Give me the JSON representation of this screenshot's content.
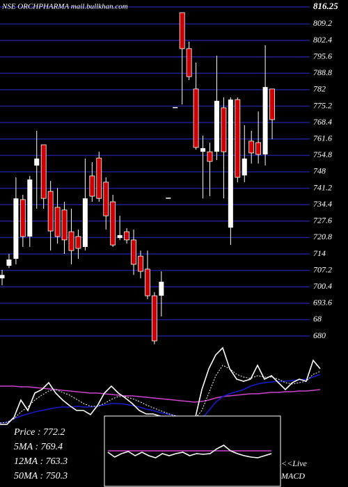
{
  "chart_data": [
    {
      "type": "candlestick",
      "title": "NSE ORCHPHARMA mail.bullkhan.com",
      "up_color": "#ffffff",
      "down_color": "#cc0000",
      "grid": true,
      "grid_color": "#1f1f8f",
      "ylim": [
        676.56,
        819.13
      ],
      "yticks": [
        816.25,
        809.2,
        802.4,
        795.6,
        788.8,
        782,
        775.2,
        768.4,
        761.6,
        754.8,
        748,
        741.2,
        734.4,
        727.6,
        720.8,
        714,
        707.2,
        700.4,
        693.6,
        {
          "value": 686.8,
          "label": "68"
        },
        680
      ],
      "open": [
        703.9,
        709.1,
        712.0,
        736.5,
        721.2,
        750.6,
        759.2,
        739.9,
        733.3,
        732.2,
        723.2,
        721.2,
        716.9,
        746.3,
        753.7,
        743.7,
        735.6,
        720.6,
        723.2,
        719.8,
        713.1,
        707.7,
        696.7,
        696.7,
        737.3,
        774.8,
        813.9,
        799.0,
        782.3,
        756.3,
        756.3,
        756.3,
        774.5,
        724.9,
        777.9,
        746.5,
        760.7,
        760.1,
        755.2,
        782.3
      ],
      "high": [
        707.4,
        714.0,
        745.7,
        738.5,
        746.3,
        765.0,
        759.2,
        744.2,
        741.3,
        735.6,
        732.7,
        724.1,
        753.5,
        752.0,
        756.3,
        745.7,
        738.5,
        729.8,
        724.7,
        724.1,
        715.4,
        715.4,
        698.2,
        706.8,
        737.3,
        774.8,
        813.9,
        801.9,
        793.2,
        763.0,
        760.1,
        796.1,
        778.8,
        778.8,
        778.8,
        767.3,
        765.0,
        773.0,
        800.4,
        782.3
      ],
      "low": [
        701.0,
        708.2,
        709.7,
        716.9,
        716.9,
        732.7,
        732.7,
        715.4,
        718.3,
        714.0,
        709.7,
        712.0,
        715.4,
        735.6,
        735.6,
        724.1,
        716.9,
        719.8,
        718.3,
        705.3,
        703.9,
        695.3,
        676.6,
        688.1,
        737.3,
        774.8,
        775.9,
        786.0,
        757.2,
        737.0,
        737.9,
        752.9,
        737.0,
        717.7,
        743.7,
        743.7,
        751.4,
        751.4,
        750.6,
        761.5
      ],
      "close": [
        705.3,
        711.7,
        737.0,
        721.2,
        744.8,
        753.5,
        737.0,
        723.5,
        721.2,
        719.8,
        715.4,
        716.3,
        737.0,
        737.9,
        737.0,
        729.8,
        717.7,
        721.8,
        719.8,
        709.7,
        706.8,
        696.7,
        678.0,
        702.5,
        737.3,
        774.8,
        799.0,
        787.4,
        758.1,
        757.8,
        752.3,
        777.4,
        756.3,
        777.9,
        745.7,
        753.5,
        755.8,
        755.2,
        783.1,
        769.6
      ]
    },
    {
      "type": "line",
      "ylim": [
        0,
        115
      ],
      "annotations": [
        "Price : 772.2",
        "5MA : 769.4",
        "12MA : 763.3",
        "50MA : 750.3"
      ],
      "series": [
        {
          "color": "#cc44cc",
          "values": [
            55,
            55,
            55,
            54,
            54,
            53,
            52,
            51,
            50,
            49,
            48,
            47,
            46,
            45,
            45,
            44,
            43,
            42,
            41,
            41,
            40,
            39,
            38,
            37,
            36,
            35,
            34,
            33,
            32,
            33,
            35,
            38,
            40,
            41,
            42,
            43,
            44,
            44,
            45,
            46,
            46,
            47,
            47,
            48,
            48,
            49,
            50
          ]
        },
        {
          "color": "#1a1acc",
          "values": [
            2,
            3,
            8,
            12,
            15,
            18,
            20,
            22,
            24,
            25,
            25,
            26,
            25,
            25,
            26,
            28,
            30,
            30,
            29,
            27,
            25,
            22,
            20,
            17,
            15,
            13,
            10,
            8,
            6,
            8,
            20,
            32,
            40,
            44,
            47,
            50,
            55,
            58,
            60,
            61,
            62,
            62,
            63,
            64,
            65,
            68,
            72
          ]
        },
        {
          "color": "#ffffff",
          "dashed": true,
          "values": [
            2,
            3,
            8,
            18,
            25,
            35,
            42,
            48,
            50,
            46,
            42,
            36,
            30,
            26,
            26,
            30,
            36,
            40,
            40,
            37,
            33,
            28,
            24,
            20,
            16,
            13,
            10,
            9,
            8,
            20,
            45,
            70,
            85,
            80,
            72,
            68,
            66,
            70,
            68,
            68,
            65,
            60,
            58,
            60,
            62,
            72,
            76
          ]
        },
        {
          "color": "#ffffff",
          "values": [
            0,
            0,
            10,
            35,
            20,
            45,
            50,
            60,
            45,
            35,
            27,
            20,
            20,
            14,
            27,
            45,
            55,
            45,
            38,
            30,
            20,
            15,
            15,
            12,
            10,
            8,
            7,
            10,
            7,
            50,
            80,
            100,
            110,
            80,
            65,
            62,
            65,
            85,
            65,
            70,
            60,
            50,
            60,
            65,
            62,
            92,
            80
          ]
        }
      ]
    },
    {
      "type": "line",
      "title": "MACD",
      "annotations": [
        "<<Live"
      ],
      "ylim": [
        -50,
        52
      ],
      "series": [
        {
          "color": "#cc44cc",
          "values": [
            2,
            2,
            2,
            2,
            2,
            2,
            2,
            2,
            2,
            2,
            2,
            2,
            2,
            2,
            2,
            2,
            2,
            2,
            2,
            2,
            2,
            2,
            2,
            2,
            2
          ]
        },
        {
          "color": "#ffffff",
          "values": [
            0,
            -7,
            -2,
            1,
            -5,
            0,
            -5,
            -8,
            -2,
            -5,
            -2,
            0,
            -5,
            -2,
            -3,
            -2,
            5,
            10,
            2,
            -2,
            -5,
            -7,
            -8,
            -5,
            -2
          ]
        }
      ]
    }
  ]
}
